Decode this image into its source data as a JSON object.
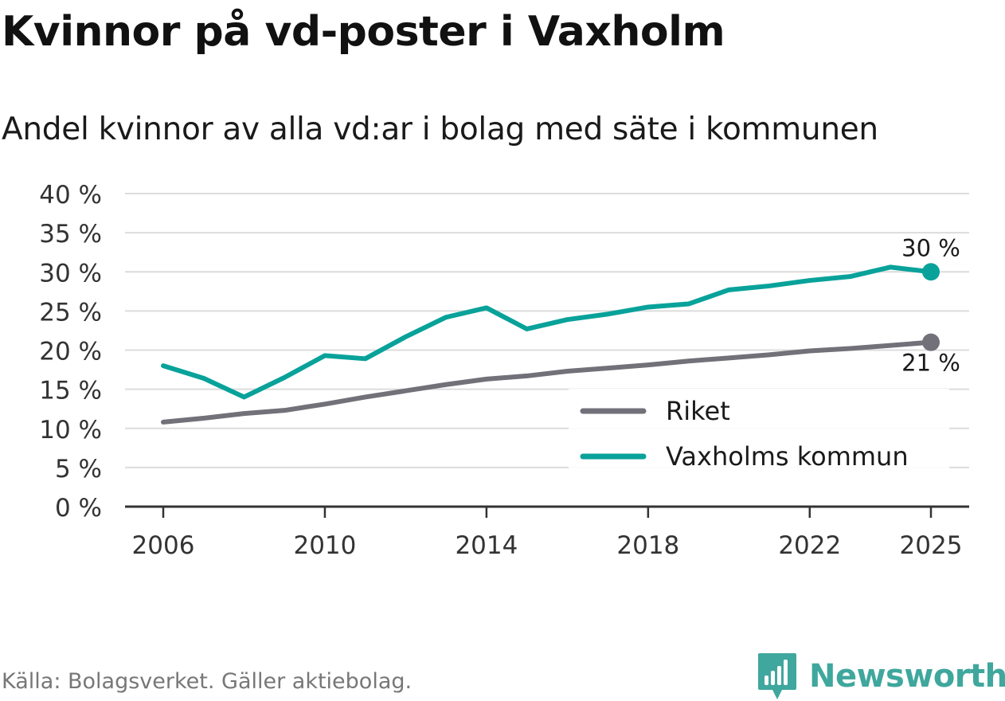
{
  "title": "Kvinnor på vd-poster i Vaxholm",
  "subtitle": "Andel kvinnor av alla vd:ar i bolag med säte i kommunen",
  "source": "Källa: Bolagsverket. Gäller aktiebolag.",
  "brand": "Newsworthy",
  "colors": {
    "riket": "#727078",
    "vaxholm": "#08a29a",
    "grid": "#dcdcdc",
    "axis": "#333333",
    "brand": "#3fa79d"
  },
  "chart_data": {
    "type": "line",
    "x": [
      2006,
      2007,
      2008,
      2009,
      2010,
      2011,
      2012,
      2013,
      2014,
      2015,
      2016,
      2017,
      2018,
      2019,
      2020,
      2021,
      2022,
      2023,
      2024,
      2025
    ],
    "series": [
      {
        "name": "Riket",
        "key": "riket",
        "values": [
          10.8,
          11.3,
          11.9,
          12.3,
          13.1,
          14.0,
          14.8,
          15.6,
          16.3,
          16.7,
          17.3,
          17.7,
          18.1,
          18.6,
          19.0,
          19.4,
          19.9,
          20.2,
          20.6,
          21.0
        ],
        "end_label": "21 %"
      },
      {
        "name": "Vaxholms kommun",
        "key": "vaxholm",
        "values": [
          18.0,
          16.4,
          14.0,
          16.5,
          19.3,
          18.9,
          21.7,
          24.2,
          25.4,
          22.7,
          23.9,
          24.6,
          25.5,
          25.9,
          27.7,
          28.2,
          28.9,
          29.4,
          30.6,
          30.0
        ],
        "end_label": "30 %"
      }
    ],
    "ylim": [
      0,
      40
    ],
    "yticks": [
      0,
      5,
      10,
      15,
      20,
      25,
      30,
      35,
      40
    ],
    "ytick_labels": [
      "0 %",
      "5 %",
      "10 %",
      "15 %",
      "20 %",
      "25 %",
      "30 %",
      "35 %",
      "40 %"
    ],
    "xticks": [
      2006,
      2010,
      2014,
      2018,
      2022,
      2025
    ],
    "xtick_labels": [
      "2006",
      "2010",
      "2014",
      "2018",
      "2022",
      "2025"
    ],
    "xlim": [
      2006,
      2025
    ],
    "legend": [
      "Riket",
      "Vaxholms kommun"
    ],
    "legend_position": "bottom-right",
    "grid": true,
    "xlabel": "",
    "ylabel": ""
  }
}
